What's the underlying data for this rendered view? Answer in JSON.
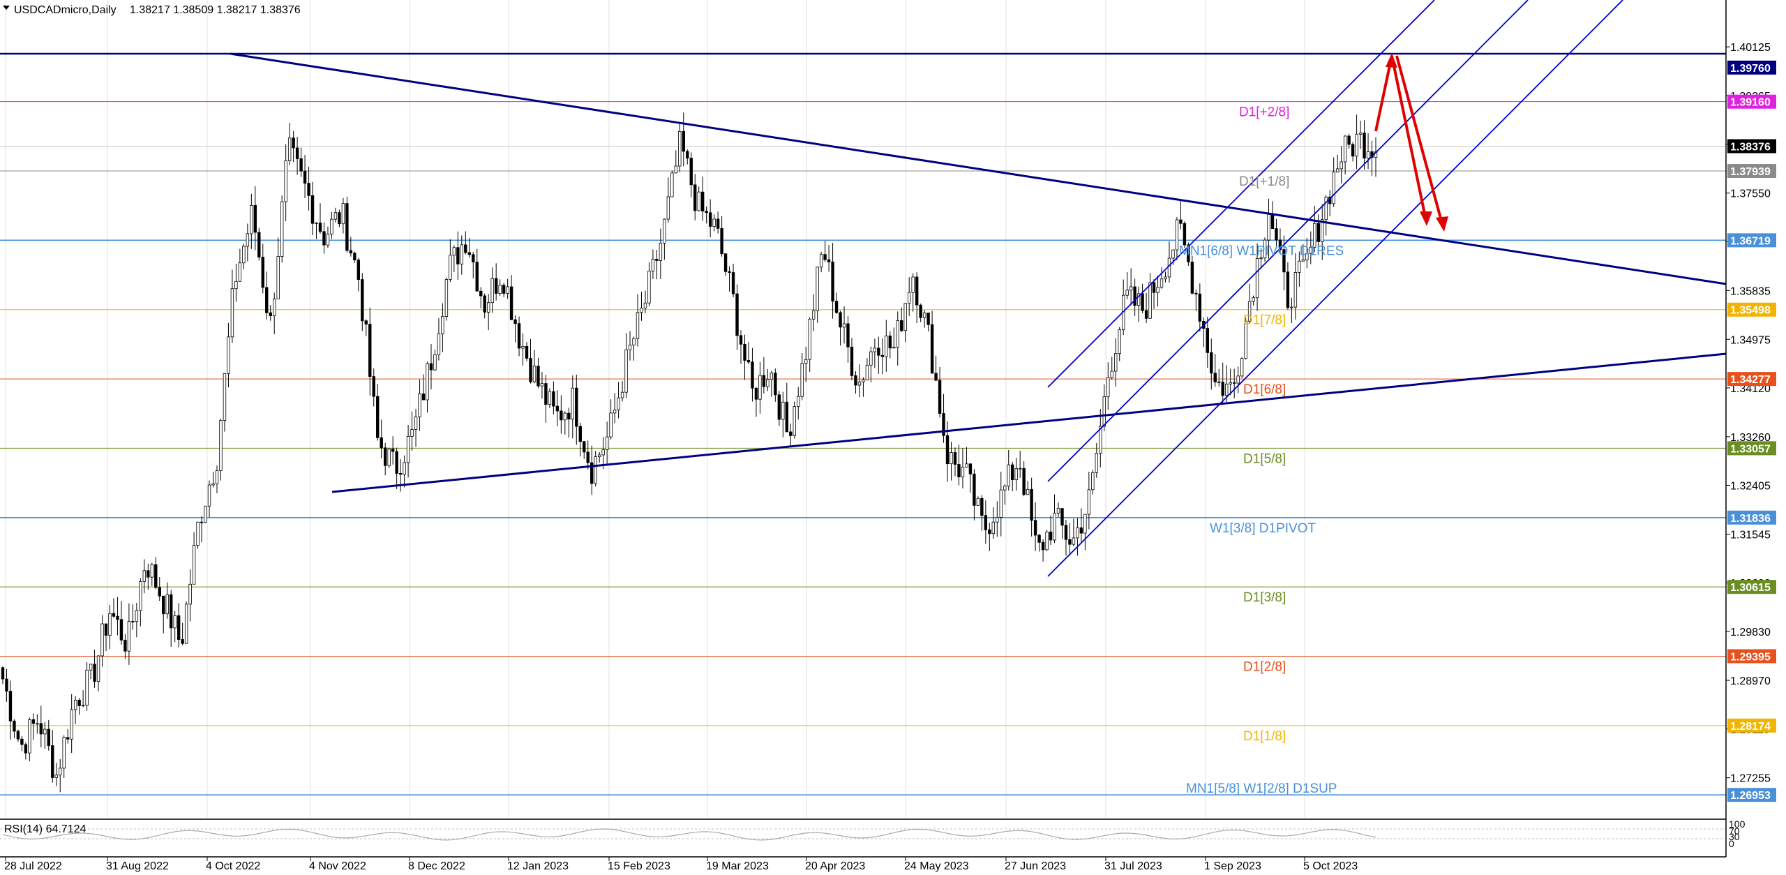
{
  "header": {
    "symbol": "USDCADmicro,Daily",
    "ohlc": "1.38217 1.38509 1.38217 1.38376"
  },
  "rsi": {
    "label": "RSI(14) 64.7124",
    "scale_labels": [
      "100",
      "70",
      "30",
      "0"
    ]
  },
  "colors": {
    "background": "#ffffff",
    "grid": "#d3d3d3",
    "candle": "#000000",
    "trendline": "#000080",
    "channel": "#0000cd",
    "arrow": "#e00000",
    "current_price": "#000000"
  },
  "chart_data": {
    "type": "candlestick",
    "title": "USDCADmicro,Daily",
    "ylim": [
      1.2655,
      1.4095
    ],
    "y_ticks": [
      "1.40125",
      "1.39265",
      "1.38410",
      "1.37550",
      "1.36695",
      "1.35835",
      "1.34975",
      "1.34120",
      "1.33260",
      "1.32405",
      "1.31545",
      "1.30690",
      "1.29830",
      "1.28970",
      "1.28115",
      "1.27255"
    ],
    "x_ticks": [
      "28 Jul 2022",
      "31 Aug 2022",
      "4 Oct 2022",
      "4 Nov 2022",
      "8 Dec 2022",
      "12 Jan 2023",
      "15 Feb 2023",
      "19 Mar 2023",
      "20 Apr 2023",
      "24 May 2023",
      "27 Jun 2023",
      "31 Jul 2023",
      "1 Sep 2023",
      "5 Oct 2023"
    ],
    "anchor_closes": [
      1.29,
      1.278,
      1.283,
      1.273,
      1.286,
      1.29,
      1.302,
      1.296,
      1.311,
      1.304,
      1.296,
      1.318,
      1.329,
      1.36,
      1.372,
      1.352,
      1.383,
      1.376,
      1.368,
      1.372,
      1.36,
      1.332,
      1.327,
      1.333,
      1.346,
      1.362,
      1.368,
      1.356,
      1.362,
      1.35,
      1.342,
      1.336,
      1.339,
      1.327,
      1.333,
      1.346,
      1.356,
      1.368,
      1.384,
      1.373,
      1.369,
      1.356,
      1.34,
      1.345,
      1.333,
      1.347,
      1.366,
      1.352,
      1.342,
      1.35,
      1.348,
      1.362,
      1.349,
      1.329,
      1.326,
      1.316,
      1.322,
      1.329,
      1.312,
      1.318,
      1.314,
      1.322,
      1.344,
      1.357,
      1.355,
      1.362,
      1.369,
      1.357,
      1.342,
      1.341,
      1.358,
      1.373,
      1.357,
      1.362,
      1.372,
      1.382,
      1.385,
      1.3838
    ],
    "price_levels": [
      {
        "label": "MN1[5/8] W1[2/8] D1SUP",
        "value": "1.26953",
        "color": "#4a90d9"
      },
      {
        "label": "D1[1/8]",
        "value": "1.28174",
        "color": "#f2b400"
      },
      {
        "label": "D1[2/8]",
        "value": "1.29395",
        "color": "#e8501e"
      },
      {
        "label": "D1[3/8]",
        "value": "1.30615",
        "color": "#6b8e23"
      },
      {
        "label": "W1[3/8] D1PIVOT",
        "value": "1.31836",
        "color": "#4a90d9"
      },
      {
        "label": "D1[5/8]",
        "value": "1.33057",
        "color": "#6b8e23"
      },
      {
        "label": "D1[6/8]",
        "value": "1.34277",
        "color": "#e8501e"
      },
      {
        "label": "D1[7/8]",
        "value": "1.35498",
        "color": "#f2b400"
      },
      {
        "label": "MN1[6/8] W1PIVOT D1RES",
        "value": "1.36719",
        "color": "#4a90d9"
      },
      {
        "label": "D1[+1/8]",
        "value": "1.37939",
        "color": "#8a8a8a"
      },
      {
        "label": "D1[+2/8]",
        "value": "1.39160",
        "color": "#e020e0"
      },
      {
        "label": "",
        "value": "1.39760",
        "color": "#000080"
      }
    ],
    "current_price": "1.38376",
    "grid": true
  }
}
